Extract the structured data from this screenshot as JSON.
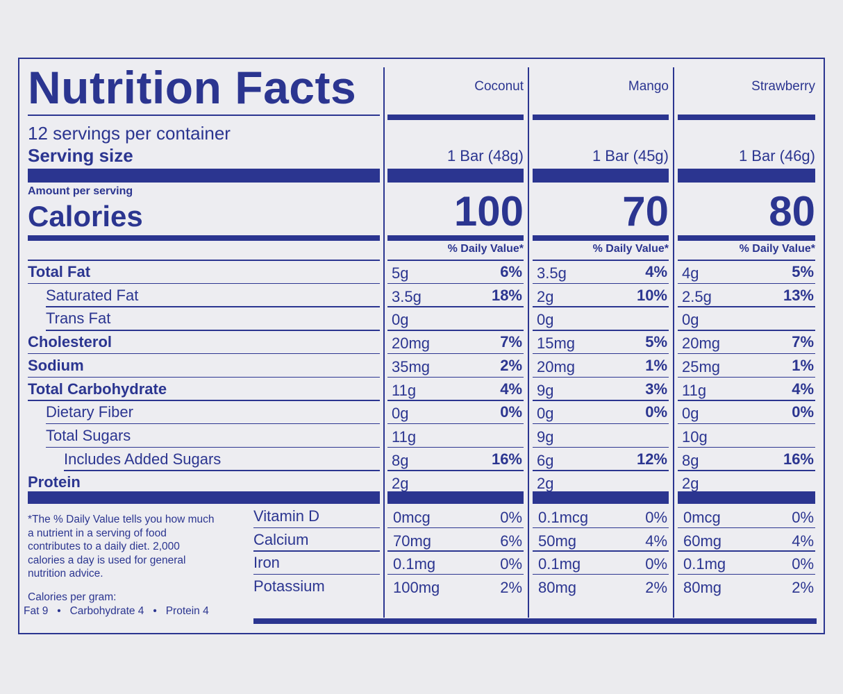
{
  "title": "Nutrition Facts",
  "servings_per_container": "12 servings per container",
  "serving_size_label": "Serving size",
  "amount_per_serving": "Amount per serving",
  "calories_label": "Calories",
  "daily_value_header": "% Daily Value*",
  "products": [
    {
      "name": "Coconut",
      "serving": "1 Bar (48g)",
      "calories": "100"
    },
    {
      "name": "Mango",
      "serving": "1 Bar (45g)",
      "calories": "70"
    },
    {
      "name": "Strawberry",
      "serving": "1 Bar (46g)",
      "calories": "80"
    }
  ],
  "nutrients": [
    {
      "label": "Total Fat",
      "bold": true,
      "indent": 0,
      "values": [
        {
          "amt": "5g",
          "dv": "6%"
        },
        {
          "amt": "3.5g",
          "dv": "4%"
        },
        {
          "amt": "4g",
          "dv": "5%"
        }
      ]
    },
    {
      "label": "Saturated Fat",
      "bold": false,
      "indent": 1,
      "values": [
        {
          "amt": "3.5g",
          "dv": "18%"
        },
        {
          "amt": "2g",
          "dv": "10%"
        },
        {
          "amt": "2.5g",
          "dv": "13%"
        }
      ]
    },
    {
      "label": "Trans Fat",
      "bold": false,
      "indent": 1,
      "values": [
        {
          "amt": "0g",
          "dv": ""
        },
        {
          "amt": "0g",
          "dv": ""
        },
        {
          "amt": "0g",
          "dv": ""
        }
      ]
    },
    {
      "label": "Cholesterol",
      "bold": true,
      "indent": 0,
      "values": [
        {
          "amt": "20mg",
          "dv": "7%"
        },
        {
          "amt": "15mg",
          "dv": "5%"
        },
        {
          "amt": "20mg",
          "dv": "7%"
        }
      ]
    },
    {
      "label": "Sodium",
      "bold": true,
      "indent": 0,
      "values": [
        {
          "amt": "35mg",
          "dv": "2%"
        },
        {
          "amt": "20mg",
          "dv": "1%"
        },
        {
          "amt": "25mg",
          "dv": "1%"
        }
      ]
    },
    {
      "label": "Total Carbohydrate",
      "bold": true,
      "indent": 0,
      "values": [
        {
          "amt": "11g",
          "dv": "4%"
        },
        {
          "amt": "9g",
          "dv": "3%"
        },
        {
          "amt": "11g",
          "dv": "4%"
        }
      ]
    },
    {
      "label": "Dietary Fiber",
      "bold": false,
      "indent": 1,
      "values": [
        {
          "amt": "0g",
          "dv": "0%"
        },
        {
          "amt": "0g",
          "dv": "0%"
        },
        {
          "amt": "0g",
          "dv": "0%"
        }
      ]
    },
    {
      "label": "Total Sugars",
      "bold": false,
      "indent": 1,
      "values": [
        {
          "amt": "11g",
          "dv": ""
        },
        {
          "amt": "9g",
          "dv": ""
        },
        {
          "amt": "10g",
          "dv": ""
        }
      ]
    },
    {
      "label": "Includes Added Sugars",
      "bold": false,
      "indent": 2,
      "values": [
        {
          "amt": "8g",
          "dv": "16%"
        },
        {
          "amt": "6g",
          "dv": "12%"
        },
        {
          "amt": "8g",
          "dv": "16%"
        }
      ]
    },
    {
      "label": "Protein",
      "bold": true,
      "indent": 0,
      "values": [
        {
          "amt": "2g",
          "dv": ""
        },
        {
          "amt": "2g",
          "dv": ""
        },
        {
          "amt": "2g",
          "dv": ""
        }
      ]
    }
  ],
  "vitamins": [
    {
      "label": "Vitamin D",
      "values": [
        {
          "amt": "0mcg",
          "dv": "0%"
        },
        {
          "amt": "0.1mcg",
          "dv": "0%"
        },
        {
          "amt": "0mcg",
          "dv": "0%"
        }
      ]
    },
    {
      "label": "Calcium",
      "values": [
        {
          "amt": "70mg",
          "dv": "6%"
        },
        {
          "amt": "50mg",
          "dv": "4%"
        },
        {
          "amt": "60mg",
          "dv": "4%"
        }
      ]
    },
    {
      "label": "Iron",
      "values": [
        {
          "amt": "0.1mg",
          "dv": "0%"
        },
        {
          "amt": "0.1mg",
          "dv": "0%"
        },
        {
          "amt": "0.1mg",
          "dv": "0%"
        }
      ]
    },
    {
      "label": "Potassium",
      "values": [
        {
          "amt": "100mg",
          "dv": "2%"
        },
        {
          "amt": "80mg",
          "dv": "2%"
        },
        {
          "amt": "80mg",
          "dv": "2%"
        }
      ]
    }
  ],
  "footnote_lines": [
    "*The % Daily Value tells you how much",
    "a nutrient in a serving of food",
    "contributes to a daily diet. 2,000",
    "calories a day is used for general",
    "nutrition advice."
  ],
  "calories_per_gram_label": "Calories per gram:",
  "calories_per_gram_line": "Fat 9   •   Carbohydrate 4   •   Protein 4",
  "colors": {
    "ink": "#2b3590",
    "background": "#ededf1"
  }
}
